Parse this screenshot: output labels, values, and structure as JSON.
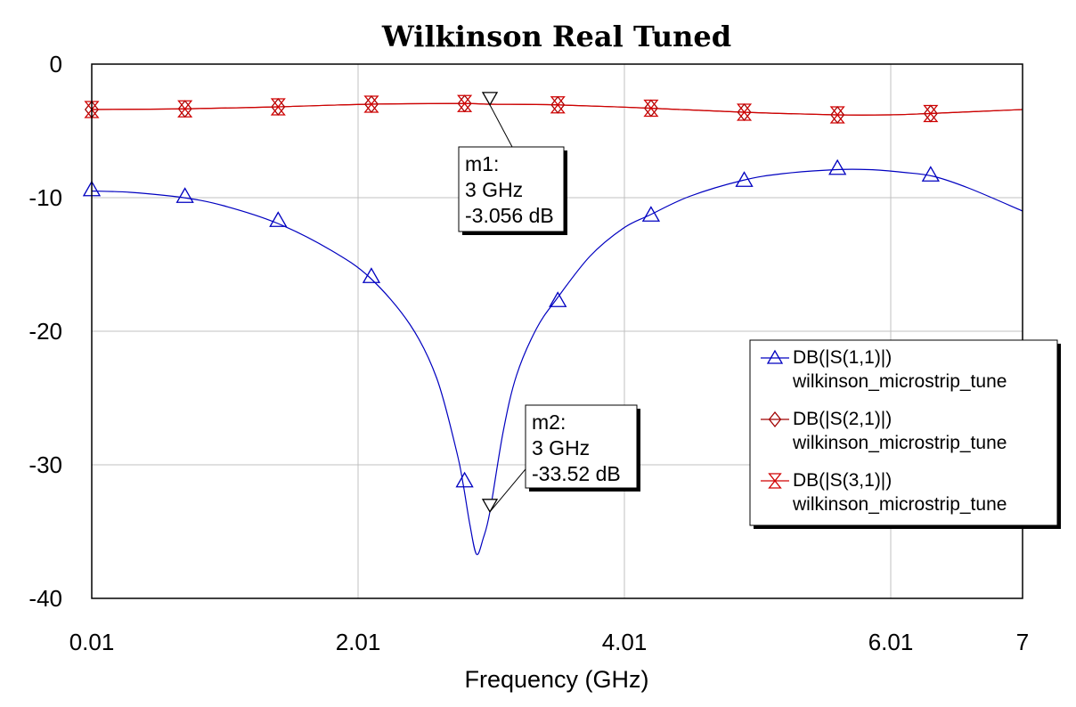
{
  "chart_data": {
    "type": "line",
    "title": "Wilkinson Real Tuned",
    "xlabel": "Frequency (GHz)",
    "ylabel": "",
    "xlim": [
      0.01,
      7
    ],
    "ylim": [
      -40,
      0
    ],
    "x_ticks": [
      "0.01",
      "2.01",
      "4.01",
      "6.01",
      "7"
    ],
    "x_tick_values": [
      0.01,
      2.01,
      4.01,
      6.01,
      7
    ],
    "y_ticks": [
      "0",
      "-10",
      "-20",
      "-30",
      "-40"
    ],
    "y_tick_values": [
      0,
      -10,
      -20,
      -30,
      -40
    ],
    "grid": true,
    "legend_position": "right",
    "series": [
      {
        "name": "DB(|S(1,1)|)",
        "sub": "wilkinson_microstrip_tune",
        "color": "#0000c0",
        "symbol": "triangle-up",
        "x": [
          0.01,
          0.3,
          0.7,
          1.0,
          1.4,
          1.8,
          2.1,
          2.4,
          2.6,
          2.75,
          2.8,
          2.85,
          2.9,
          2.95,
          3.0,
          3.1,
          3.2,
          3.35,
          3.5,
          3.75,
          4.0,
          4.2,
          4.5,
          4.9,
          5.2,
          5.6,
          5.85,
          6.1,
          6.33,
          6.6,
          7.0
        ],
        "y": [
          -9.5,
          -9.6,
          -10.0,
          -10.6,
          -11.9,
          -13.9,
          -16.0,
          -19.5,
          -23.5,
          -29.0,
          -31.5,
          -34.5,
          -36.7,
          -35.5,
          -33.52,
          -27.5,
          -23.3,
          -19.8,
          -17.6,
          -14.4,
          -12.3,
          -11.3,
          -9.9,
          -8.7,
          -8.2,
          -7.9,
          -7.9,
          -8.1,
          -8.4,
          -9.3,
          -11.0
        ],
        "marker_x": [
          0.01,
          0.71,
          1.41,
          2.11,
          2.81,
          3.51,
          4.21,
          4.91,
          5.61,
          6.31
        ],
        "marker_y": [
          -9.4,
          -9.9,
          -11.7,
          -15.9,
          -31.2,
          -17.7,
          -11.3,
          -8.7,
          -7.8,
          -8.3
        ]
      },
      {
        "name": "DB(|S(2,1)|)",
        "sub": "wilkinson_microstrip_tune",
        "color": "#a00000",
        "symbol": "diamond",
        "x": [
          0.01,
          0.7,
          1.4,
          2.1,
          2.8,
          3.0,
          3.5,
          4.2,
          4.9,
          5.6,
          6.0,
          6.3,
          7.0
        ],
        "y": [
          -3.4,
          -3.35,
          -3.2,
          -3.0,
          -2.95,
          -3.0,
          -3.05,
          -3.3,
          -3.6,
          -3.8,
          -3.8,
          -3.7,
          -3.4
        ],
        "marker_x": [
          0.01,
          0.71,
          1.41,
          2.11,
          2.81,
          3.51,
          4.21,
          4.91,
          5.61,
          6.31
        ],
        "marker_y": [
          -3.4,
          -3.35,
          -3.2,
          -3.0,
          -2.95,
          -3.05,
          -3.3,
          -3.6,
          -3.8,
          -3.7
        ]
      },
      {
        "name": "DB(|S(3,1)|)",
        "sub": "wilkinson_microstrip_tune",
        "color": "#d00000",
        "symbol": "hourglass",
        "x": [
          0.01,
          0.7,
          1.4,
          2.1,
          2.8,
          3.0,
          3.5,
          4.2,
          4.9,
          5.6,
          6.0,
          6.3,
          7.0
        ],
        "y": [
          -3.4,
          -3.35,
          -3.2,
          -3.0,
          -2.95,
          -3.0,
          -3.05,
          -3.3,
          -3.6,
          -3.8,
          -3.8,
          -3.7,
          -3.4
        ],
        "marker_x": [
          0.01,
          0.71,
          1.41,
          2.11,
          2.81,
          3.51,
          4.21,
          4.91,
          5.61,
          6.31
        ],
        "marker_y": [
          -3.4,
          -3.35,
          -3.2,
          -3.0,
          -2.95,
          -3.05,
          -3.3,
          -3.6,
          -3.8,
          -3.7
        ]
      }
    ],
    "annotations": [
      {
        "id": "m1",
        "lines": [
          "m1:",
          "3 GHz",
          "-3.056 dB"
        ],
        "x": 3.0,
        "y": -3.056
      },
      {
        "id": "m2",
        "lines": [
          "m2:",
          "3 GHz",
          "-33.52 dB"
        ],
        "x": 3.0,
        "y": -33.52
      }
    ]
  }
}
